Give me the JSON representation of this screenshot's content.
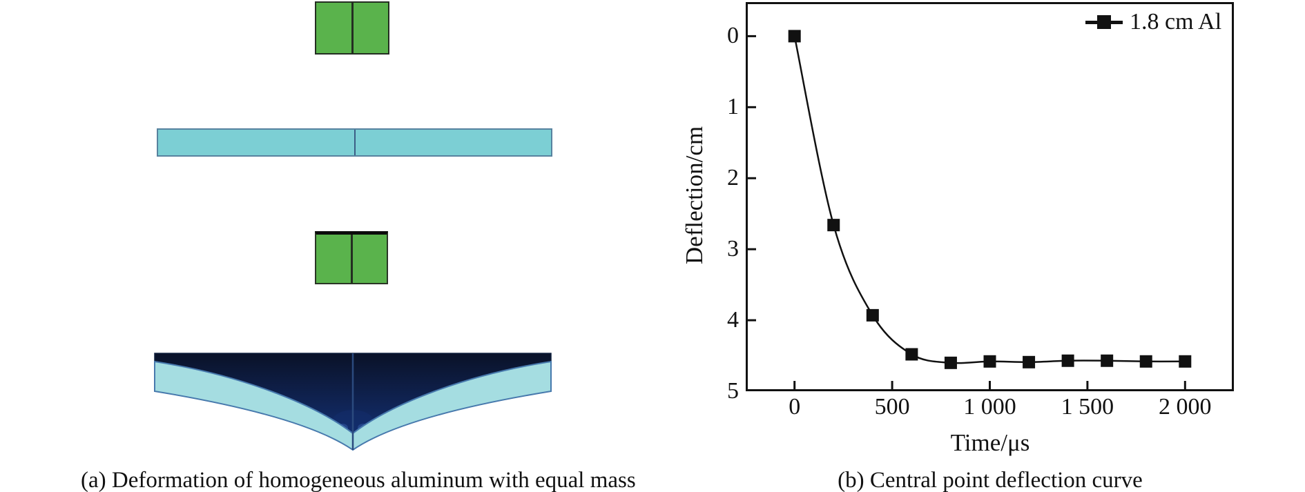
{
  "figure": {
    "panel_a": {
      "caption": "(a) Deformation of homogeneous aluminum with equal mass",
      "colors": {
        "plate_green": "#5ab34c",
        "plate_cyan": "#7ccfd4",
        "deformed_band": "#a5dde1",
        "deformed_core_dark": "#0a1228",
        "deformed_core_blue": "#132e6e",
        "core_highlight": "#2e55a0",
        "band_edge": "#4779ad",
        "center_line": "#2b4a7e"
      }
    },
    "panel_b": {
      "caption": "(b) Central point deflection curve",
      "legend": {
        "label": "1.8 cm Al",
        "marker": "filled-square",
        "color": "#111111"
      },
      "xlabel": "Time/μs",
      "ylabel": "Deflection/cm"
    }
  },
  "chart_data": {
    "type": "line",
    "title": "",
    "xlabel": "Time/μs",
    "ylabel": "Deflection/cm",
    "grid": false,
    "legend_position": "top-right",
    "y_axis_reversed": true,
    "xlim": [
      -250,
      2250
    ],
    "ylim_top_to_bottom": [
      -0.48,
      5
    ],
    "x_ticks": {
      "values": [
        0,
        500,
        1000,
        1500,
        2000
      ],
      "labels": [
        "0",
        "500",
        "1 000",
        "1 500",
        "2 000"
      ]
    },
    "y_ticks": {
      "values": [
        0,
        1,
        2,
        3,
        4,
        5
      ],
      "labels": [
        "0",
        "1",
        "2",
        "3",
        "4",
        "5"
      ]
    },
    "series": [
      {
        "name": "1.8 cm Al",
        "marker": "square",
        "color": "#111111",
        "x": [
          0,
          200,
          400,
          600,
          800,
          1000,
          1200,
          1400,
          1600,
          1800,
          2000
        ],
        "y": [
          0,
          2.66,
          3.93,
          4.48,
          4.6,
          4.58,
          4.59,
          4.57,
          4.57,
          4.58,
          4.58
        ]
      }
    ]
  }
}
